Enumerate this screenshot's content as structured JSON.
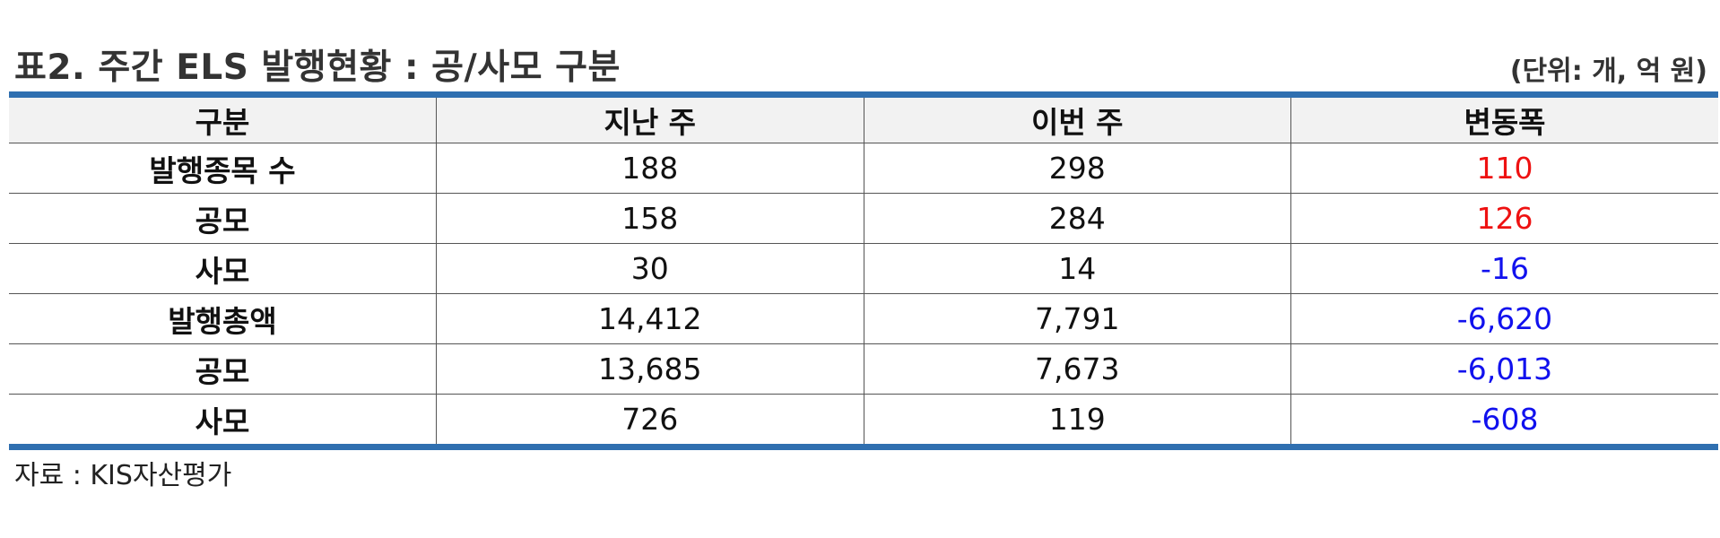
{
  "title": "표2. 주간 ELS 발행현황 : 공/사모 구분",
  "unit_note": "(단위: 개, 억 원)",
  "table": {
    "headers": [
      "구분",
      "지난 주",
      "이번 주",
      "변동폭"
    ],
    "rows": [
      {
        "label": "발행종목 수",
        "last_week": "188",
        "this_week": "298",
        "change": "110",
        "change_sign": "positive"
      },
      {
        "label": "공모",
        "last_week": "158",
        "this_week": "284",
        "change": "126",
        "change_sign": "positive"
      },
      {
        "label": "사모",
        "last_week": "30",
        "this_week": "14",
        "change": "-16",
        "change_sign": "negative"
      },
      {
        "label": "발행총액",
        "last_week": "14,412",
        "this_week": "7,791",
        "change": "-6,620",
        "change_sign": "negative"
      },
      {
        "label": "공모",
        "last_week": "13,685",
        "this_week": "7,673",
        "change": "-6,013",
        "change_sign": "negative"
      },
      {
        "label": "사모",
        "last_week": "726",
        "this_week": "119",
        "change": "-608",
        "change_sign": "negative"
      }
    ]
  },
  "source": "자료 : KIS자산평가",
  "colors": {
    "accent_rule": "#2f6fb0",
    "header_bg": "#f2f2f2",
    "positive": "#ee1111",
    "negative": "#1111ee"
  }
}
